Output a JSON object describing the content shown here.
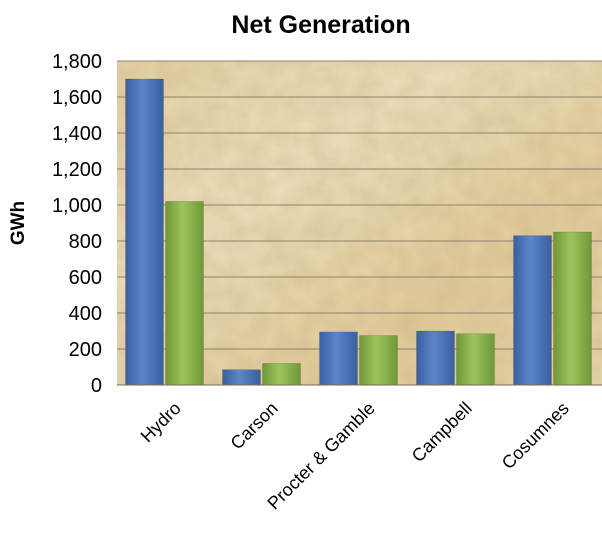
{
  "chart_data": {
    "type": "bar",
    "title": "Net Generation",
    "xlabel": "",
    "ylabel": "GWh",
    "categories": [
      "Hydro",
      "Carson",
      "Procter & Gamble",
      "Campbell",
      "Cosumnes"
    ],
    "series": [
      {
        "values": [
          1700,
          85,
          295,
          300,
          830
        ],
        "color": "#4a74b8"
      },
      {
        "values": [
          1020,
          120,
          275,
          285,
          850
        ],
        "color": "#86b04a"
      }
    ],
    "ylim": [
      0,
      1800
    ],
    "yticks": [
      "0",
      "200",
      "400",
      "600",
      "800",
      "1,000",
      "1,200",
      "1,400",
      "1,600",
      "1,800"
    ],
    "grid": true,
    "legend": "none",
    "plot_background": "textured beige"
  }
}
